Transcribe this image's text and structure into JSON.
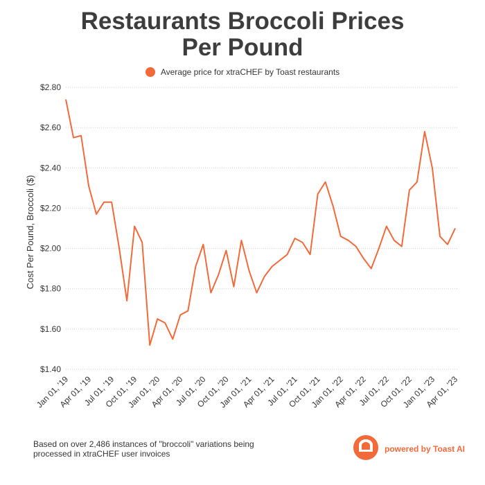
{
  "chart_data": {
    "type": "line",
    "title": "Restaurants Broccoli Prices Per Pound",
    "y_label": "Cost Per Pound, Broccoli ($)",
    "footnote": "Based on over 2,486 instances of \"broccoli\" variations being processed in xtraCHEF user invoices",
    "brand": "powered by Toast AI",
    "categories": [
      "Jan 01, '19",
      null,
      null,
      "Apr 01, '19",
      null,
      null,
      "Jul 01, '19",
      null,
      null,
      "Oct 01, '19",
      null,
      null,
      "Jan 01, '20",
      null,
      null,
      "Apr 01, '20",
      null,
      null,
      "Jul 01, '20",
      null,
      null,
      "Oct 01, '20",
      null,
      null,
      "Jan 01, '21",
      null,
      null,
      "Apr 01, '21",
      null,
      null,
      "Jul 01, '21",
      null,
      null,
      "Oct 01, '21",
      null,
      null,
      "Jan 01, '22",
      null,
      null,
      "Apr 01, '22",
      null,
      null,
      "Jul 01, '22",
      null,
      null,
      "Oct 01, '22",
      null,
      null,
      "Jan 01, '23",
      null,
      null,
      "Apr 01, '23"
    ],
    "series": [
      {
        "name": "Average price for xtraCHEF by Toast restaurants",
        "color": "#f2693a",
        "values": [
          2.74,
          2.55,
          2.56,
          2.31,
          2.17,
          2.23,
          2.23,
          2.0,
          1.74,
          2.11,
          2.03,
          1.52,
          1.65,
          1.63,
          1.55,
          1.67,
          1.69,
          1.91,
          2.02,
          1.78,
          1.87,
          1.99,
          1.81,
          2.04,
          1.89,
          1.78,
          1.86,
          1.91,
          1.94,
          1.97,
          2.05,
          2.03,
          1.97,
          2.27,
          2.33,
          2.21,
          2.06,
          2.04,
          2.01,
          1.95,
          1.9,
          2.0,
          2.11,
          2.04,
          2.01,
          2.29,
          2.33,
          2.58,
          2.4,
          2.06,
          2.02,
          2.1
        ]
      }
    ],
    "ylim": [
      1.4,
      2.8
    ],
    "yticks": [
      {
        "value": 1.4,
        "label": "$1.40"
      },
      {
        "value": 1.6,
        "label": "$1.60"
      },
      {
        "value": 1.8,
        "label": "$1.80"
      },
      {
        "value": 2.0,
        "label": "$2.00"
      },
      {
        "value": 2.2,
        "label": "$2.20"
      },
      {
        "value": 2.4,
        "label": "$2.40"
      },
      {
        "value": 2.6,
        "label": "$2.60"
      },
      {
        "value": 2.8,
        "label": "$2.80"
      }
    ],
    "grid": true
  }
}
